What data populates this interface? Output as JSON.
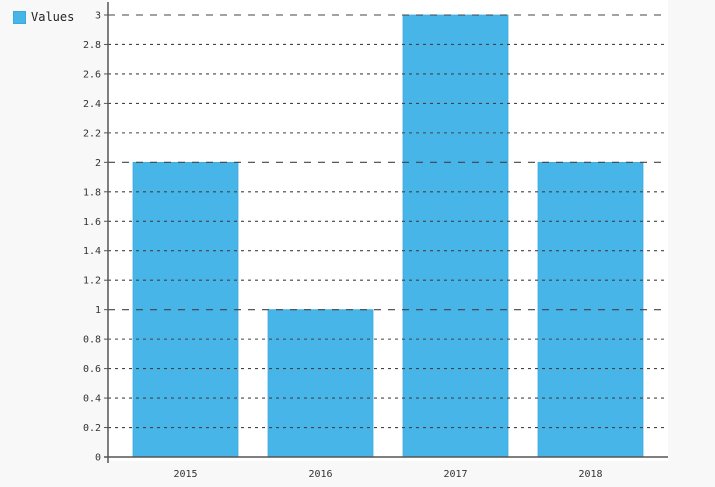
{
  "legend": {
    "label": "Values",
    "position": "top-left"
  },
  "colors": {
    "bar": "#48b5e9",
    "bar_border": "#39a9de",
    "grid": "#444444",
    "axis": "#555555",
    "tick_text": "#333333",
    "legend_text": "#222222",
    "page_background": "#f8f8f8",
    "plot_background": "#ffffff"
  },
  "chart_data": {
    "type": "bar",
    "title": "",
    "xlabel": "",
    "ylabel": "",
    "categories": [
      "2015",
      "2016",
      "2017",
      "2018"
    ],
    "series": [
      {
        "name": "Values",
        "values": [
          2,
          1,
          3,
          2
        ]
      }
    ],
    "ylim": [
      0,
      3
    ],
    "ytick_step": 0.2,
    "ytick_labels": [
      "0",
      "0.2",
      "0.4",
      "0.6",
      "0.8",
      "1",
      "1.2",
      "1.4",
      "1.6",
      "1.8",
      "2",
      "2.2",
      "2.4",
      "2.6",
      "2.8",
      "3"
    ],
    "grid": "horizontal-dashed",
    "grid_major_at_integers": true,
    "legend_position": "top-left",
    "legend_entries": [
      "Values"
    ]
  }
}
